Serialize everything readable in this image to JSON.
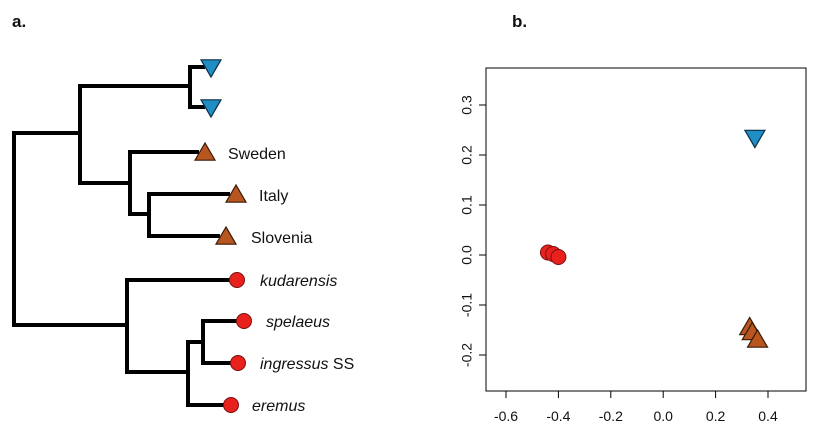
{
  "panels": {
    "a": "a.",
    "b": "b."
  },
  "colors": {
    "blue": "#1f8ec5",
    "orange": "#b8561f",
    "red": "#e8211d"
  },
  "tree": {
    "tips": [
      {
        "label": "",
        "italic": false,
        "marker": "triangle-down",
        "color": "blue"
      },
      {
        "label": "",
        "italic": false,
        "marker": "triangle-down",
        "color": "blue"
      },
      {
        "label": "Sweden",
        "italic": false,
        "marker": "triangle-up",
        "color": "orange"
      },
      {
        "label": "Italy",
        "italic": false,
        "marker": "triangle-up",
        "color": "orange"
      },
      {
        "label": "Slovenia",
        "italic": false,
        "marker": "triangle-up",
        "color": "orange"
      },
      {
        "label": "kudarensis",
        "italic": true,
        "marker": "circle",
        "color": "red"
      },
      {
        "label": "spelaeus",
        "italic": true,
        "marker": "circle",
        "color": "red"
      },
      {
        "label": "ingressus",
        "italic": true,
        "suffix": " SS",
        "marker": "circle",
        "color": "red"
      },
      {
        "label": "eremus",
        "italic": true,
        "marker": "circle",
        "color": "red"
      }
    ]
  },
  "chart_data": {
    "type": "scatter",
    "xlim": [
      -0.65,
      0.5
    ],
    "ylim": [
      -0.27,
      0.37
    ],
    "x_ticks": [
      "-0.6",
      "-0.4",
      "-0.2",
      "0.0",
      "0.2",
      "0.4"
    ],
    "y_ticks": [
      "0.3",
      "0.2",
      "0.1",
      "0.0",
      "-0.1",
      "-0.2"
    ],
    "points": [
      {
        "x": -0.44,
        "y": 0.005,
        "marker": "circle",
        "color": "red"
      },
      {
        "x": -0.42,
        "y": 0.002,
        "marker": "circle",
        "color": "red"
      },
      {
        "x": -0.4,
        "y": -0.004,
        "marker": "circle",
        "color": "red"
      },
      {
        "x": 0.35,
        "y": 0.235,
        "marker": "triangle-down",
        "color": "blue"
      },
      {
        "x": 0.33,
        "y": -0.145,
        "marker": "triangle-up",
        "color": "orange"
      },
      {
        "x": 0.34,
        "y": -0.155,
        "marker": "triangle-up",
        "color": "orange"
      },
      {
        "x": 0.36,
        "y": -0.17,
        "marker": "triangle-up",
        "color": "orange"
      }
    ]
  }
}
